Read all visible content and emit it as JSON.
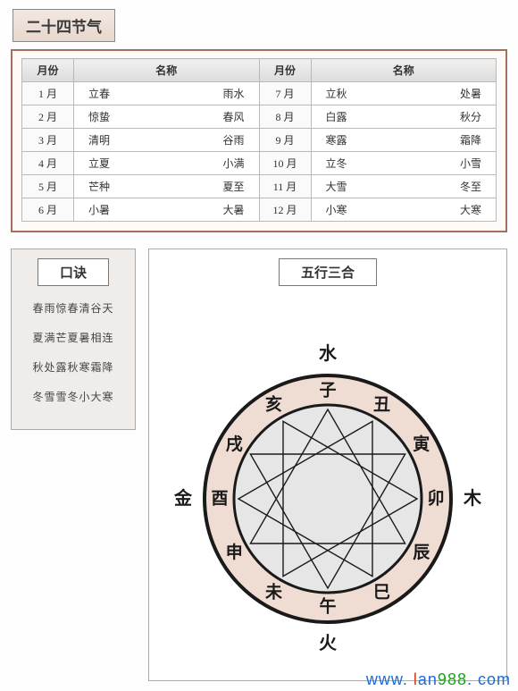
{
  "title24": "二十四节气",
  "tableHeaders": {
    "month": "月份",
    "name": "名称"
  },
  "months": [
    {
      "label": "1 月",
      "n1": "立春",
      "n2": "雨水"
    },
    {
      "label": "2 月",
      "n1": "惊蛰",
      "n2": "春风"
    },
    {
      "label": "3 月",
      "n1": "清明",
      "n2": "谷雨"
    },
    {
      "label": "4 月",
      "n1": "立夏",
      "n2": "小满"
    },
    {
      "label": "5 月",
      "n1": "芒种",
      "n2": "夏至"
    },
    {
      "label": "6 月",
      "n1": "小暑",
      "n2": "大暑"
    },
    {
      "label": "7 月",
      "n1": "立秋",
      "n2": "处暑"
    },
    {
      "label": "8 月",
      "n1": "白露",
      "n2": "秋分"
    },
    {
      "label": "9 月",
      "n1": "寒露",
      "n2": "霜降"
    },
    {
      "label": "10 月",
      "n1": "立冬",
      "n2": "小雪"
    },
    {
      "label": "11 月",
      "n1": "大雪",
      "n2": "冬至"
    },
    {
      "label": "12 月",
      "n1": "小寒",
      "n2": "大寒"
    }
  ],
  "koujueTitle": "口诀",
  "koujueLines": [
    "春雨惊春清谷天",
    "夏满芒夏暑相连",
    "秋处露秋寒霜降",
    "冬雪雪冬小大寒"
  ],
  "wuxingTitle": "五行三合",
  "wuxingElements": {
    "top": "水",
    "right": "木",
    "bottom": "火",
    "left": "金"
  },
  "zodiac": [
    "子",
    "丑",
    "寅",
    "卯",
    "辰",
    "巳",
    "午",
    "未",
    "申",
    "酉",
    "戌",
    "亥"
  ],
  "circle": {
    "outerRadius": 150,
    "ringOuter": 138,
    "ringInner": 105,
    "ringColor": "#efdcd2",
    "innerFill": "#e6e6e6",
    "strokeColor": "#1a1a1a",
    "strokeWidth": 2.5,
    "zodiacRadius": 121,
    "zodiacFontSize": 19,
    "chordRadius": 100,
    "triangles": [
      [
        0,
        4,
        8
      ],
      [
        1,
        5,
        9
      ],
      [
        2,
        6,
        10
      ],
      [
        3,
        7,
        11
      ]
    ],
    "chordWidth": 1.4
  },
  "watermark": {
    "w": "w",
    "w2": "w",
    "w3": "w",
    "dot": ". ",
    "l": "l",
    "a": "a",
    "n": "n",
    "nine": "9",
    "eight": "8",
    "eight2": "8",
    "dot2": ". ",
    "c": "c",
    "o": "o",
    "m": "m"
  }
}
